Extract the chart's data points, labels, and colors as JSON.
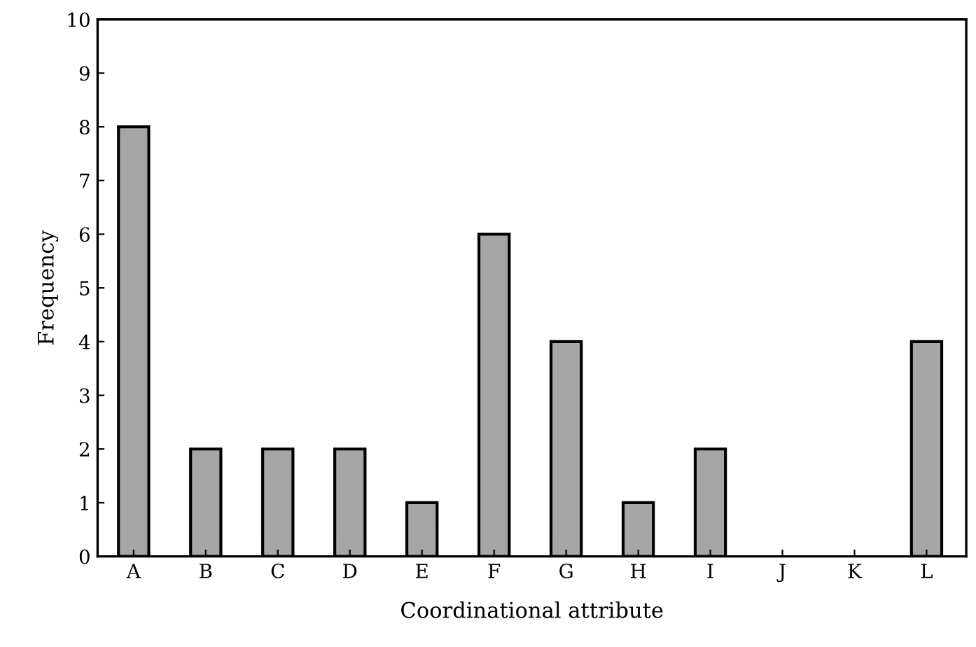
{
  "chart_data": {
    "type": "bar",
    "xlabel": "Coordinational attribute",
    "ylabel": "Frequency",
    "categories": [
      "A",
      "B",
      "C",
      "D",
      "E",
      "F",
      "G",
      "H",
      "I",
      "J",
      "K",
      "L"
    ],
    "values": [
      8,
      2,
      2,
      2,
      1,
      6,
      4,
      1,
      2,
      0,
      0,
      4
    ],
    "color": "#a6a6a6",
    "ylim": [
      0,
      10
    ],
    "yticks": [
      0,
      1,
      2,
      3,
      4,
      5,
      6,
      7,
      8,
      9,
      10
    ],
    "grid": false
  }
}
